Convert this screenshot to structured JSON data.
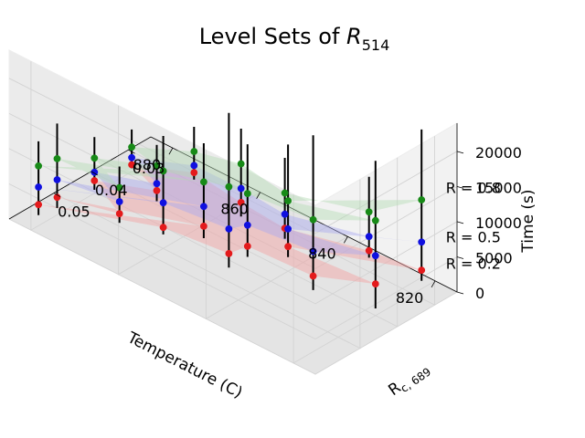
{
  "chart_data": {
    "type": "scatter",
    "projection": "3d",
    "title": "Level Sets of R_514",
    "title_main": "Level Sets of ",
    "title_symbol": "R",
    "title_subscript": "514",
    "xlabel": "Temperature (C)",
    "ylabel": "Rc,689",
    "ylabel_main": "R",
    "ylabel_subscript": "c, 689",
    "zlabel": "Time (s)",
    "xlim": [
      815,
      885
    ],
    "ylim": [
      0.024,
      0.062
    ],
    "zlim": [
      0,
      24000
    ],
    "x_ticks": [
      820,
      840,
      860,
      880
    ],
    "y_ticks": [
      0.03,
      0.04,
      0.05
    ],
    "y_tick_labels": [
      "0.03",
      "0.04",
      "0.05"
    ],
    "z_ticks": [
      0,
      5000,
      10000,
      15000,
      20000
    ],
    "grid": true,
    "annotations": [
      {
        "text": "R = 0.8",
        "x": 815,
        "y": 0.027,
        "z": 15000
      },
      {
        "text": "R = 0.5",
        "x": 815,
        "y": 0.027,
        "z": 8000
      },
      {
        "text": "R = 0.2",
        "x": 815,
        "y": 0.027,
        "z": 4200
      }
    ],
    "series": [
      {
        "name": "R = 0.2",
        "color": "#e41a1c",
        "surface_color": "#f4a0a0",
        "points": [
          {
            "x": 818,
            "y": 0.03,
            "z": 4000
          },
          {
            "x": 830,
            "y": 0.03,
            "z": 3000
          },
          {
            "x": 820,
            "y": 0.04,
            "z": 4500
          },
          {
            "x": 830,
            "y": 0.045,
            "z": 4000
          },
          {
            "x": 840,
            "y": 0.04,
            "z": 3500
          },
          {
            "x": 845,
            "y": 0.035,
            "z": 3000
          },
          {
            "x": 845,
            "y": 0.045,
            "z": 3500
          },
          {
            "x": 845,
            "y": 0.05,
            "z": 4000
          },
          {
            "x": 855,
            "y": 0.035,
            "z": 3500
          },
          {
            "x": 855,
            "y": 0.045,
            "z": 3200
          },
          {
            "x": 860,
            "y": 0.05,
            "z": 3000
          },
          {
            "x": 870,
            "y": 0.03,
            "z": 1500
          },
          {
            "x": 870,
            "y": 0.04,
            "z": 2000
          },
          {
            "x": 870,
            "y": 0.05,
            "z": 1800
          },
          {
            "x": 880,
            "y": 0.035,
            "z": 1000
          },
          {
            "x": 880,
            "y": 0.045,
            "z": 1800
          },
          {
            "x": 880,
            "y": 0.055,
            "z": 2500
          },
          {
            "x": 880,
            "y": 0.06,
            "z": 3000
          }
        ]
      },
      {
        "name": "R = 0.5",
        "color": "#1010e0",
        "surface_color": "#a8a8f0",
        "points": [
          {
            "x": 818,
            "y": 0.03,
            "z": 8000
          },
          {
            "x": 830,
            "y": 0.03,
            "z": 5000
          },
          {
            "x": 820,
            "y": 0.04,
            "z": 8500
          },
          {
            "x": 830,
            "y": 0.045,
            "z": 7500
          },
          {
            "x": 840,
            "y": 0.04,
            "z": 6000
          },
          {
            "x": 845,
            "y": 0.035,
            "z": 5000
          },
          {
            "x": 845,
            "y": 0.045,
            "z": 6500
          },
          {
            "x": 845,
            "y": 0.05,
            "z": 7500
          },
          {
            "x": 855,
            "y": 0.035,
            "z": 5500
          },
          {
            "x": 855,
            "y": 0.045,
            "z": 6000
          },
          {
            "x": 860,
            "y": 0.05,
            "z": 6500
          },
          {
            "x": 870,
            "y": 0.03,
            "z": 2500
          },
          {
            "x": 870,
            "y": 0.04,
            "z": 3000
          },
          {
            "x": 870,
            "y": 0.05,
            "z": 3500
          },
          {
            "x": 880,
            "y": 0.035,
            "z": 2000
          },
          {
            "x": 880,
            "y": 0.045,
            "z": 3000
          },
          {
            "x": 880,
            "y": 0.055,
            "z": 5000
          },
          {
            "x": 880,
            "y": 0.06,
            "z": 5500
          }
        ]
      },
      {
        "name": "R = 0.8",
        "color": "#178a17",
        "surface_color": "#b3dbb3",
        "points": [
          {
            "x": 818,
            "y": 0.03,
            "z": 14000
          },
          {
            "x": 830,
            "y": 0.03,
            "z": 8500
          },
          {
            "x": 820,
            "y": 0.04,
            "z": 13500
          },
          {
            "x": 830,
            "y": 0.045,
            "z": 12000
          },
          {
            "x": 840,
            "y": 0.04,
            "z": 10000
          },
          {
            "x": 845,
            "y": 0.035,
            "z": 8000
          },
          {
            "x": 845,
            "y": 0.045,
            "z": 11000
          },
          {
            "x": 845,
            "y": 0.05,
            "z": 13500
          },
          {
            "x": 855,
            "y": 0.035,
            "z": 9000
          },
          {
            "x": 855,
            "y": 0.045,
            "z": 9500
          },
          {
            "x": 860,
            "y": 0.05,
            "z": 11000
          },
          {
            "x": 870,
            "y": 0.03,
            "z": 4500
          },
          {
            "x": 870,
            "y": 0.04,
            "z": 5500
          },
          {
            "x": 870,
            "y": 0.05,
            "z": 5500
          },
          {
            "x": 880,
            "y": 0.035,
            "z": 3500
          },
          {
            "x": 880,
            "y": 0.045,
            "z": 5000
          },
          {
            "x": 880,
            "y": 0.055,
            "z": 8000
          },
          {
            "x": 880,
            "y": 0.06,
            "z": 8500
          }
        ]
      }
    ],
    "error_bars": [
      {
        "x": 818,
        "y": 0.03,
        "z_low": 2500,
        "z_high": 24000
      },
      {
        "x": 830,
        "y": 0.03,
        "z_low": 2000,
        "z_high": 13500
      },
      {
        "x": 820,
        "y": 0.04,
        "z_low": 1000,
        "z_high": 22000
      },
      {
        "x": 830,
        "y": 0.045,
        "z_low": 2000,
        "z_high": 24000
      },
      {
        "x": 840,
        "y": 0.04,
        "z_low": 2000,
        "z_high": 18000
      },
      {
        "x": 845,
        "y": 0.035,
        "z_low": 1500,
        "z_high": 13000
      },
      {
        "x": 845,
        "y": 0.045,
        "z_low": 2000,
        "z_high": 18000
      },
      {
        "x": 845,
        "y": 0.05,
        "z_low": 2000,
        "z_high": 24000
      },
      {
        "x": 855,
        "y": 0.035,
        "z_low": 1500,
        "z_high": 14000
      },
      {
        "x": 855,
        "y": 0.045,
        "z_low": 1500,
        "z_high": 15000
      },
      {
        "x": 860,
        "y": 0.05,
        "z_low": 2000,
        "z_high": 16000
      },
      {
        "x": 870,
        "y": 0.03,
        "z_low": 500,
        "z_high": 8000
      },
      {
        "x": 870,
        "y": 0.04,
        "z_low": 500,
        "z_high": 8500
      },
      {
        "x": 870,
        "y": 0.05,
        "z_low": 500,
        "z_high": 8500
      },
      {
        "x": 880,
        "y": 0.035,
        "z_low": 500,
        "z_high": 6000
      },
      {
        "x": 880,
        "y": 0.045,
        "z_low": 500,
        "z_high": 8000
      },
      {
        "x": 880,
        "y": 0.055,
        "z_low": 1000,
        "z_high": 13000
      },
      {
        "x": 880,
        "y": 0.06,
        "z_low": 1500,
        "z_high": 12000
      }
    ]
  }
}
